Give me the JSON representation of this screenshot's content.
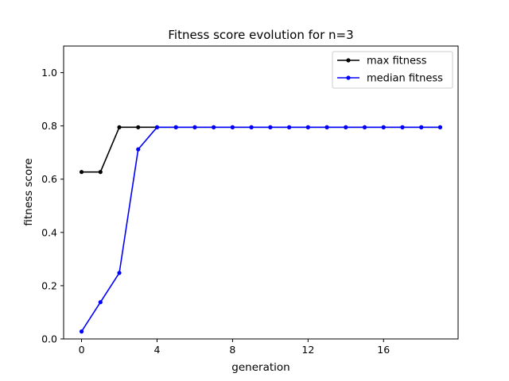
{
  "chart_data": {
    "type": "line",
    "title": "Fitness score evolution for n=3",
    "xlabel": "generation",
    "ylabel": "fitness score",
    "xlim": [
      -0.95,
      19.95
    ],
    "ylim": [
      0.0,
      1.1
    ],
    "xticks": [
      0,
      4,
      8,
      12,
      16
    ],
    "yticks": [
      0.0,
      0.2,
      0.4,
      0.6,
      0.8,
      1.0
    ],
    "xtick_labels": [
      "0",
      "4",
      "8",
      "12",
      "16"
    ],
    "ytick_labels": [
      "0.0",
      "0.2",
      "0.4",
      "0.6",
      "0.8",
      "1.0"
    ],
    "grid": false,
    "legend_position": "upper right",
    "x": [
      0,
      1,
      2,
      3,
      4,
      5,
      6,
      7,
      8,
      9,
      10,
      11,
      12,
      13,
      14,
      15,
      16,
      17,
      18,
      19
    ],
    "series": [
      {
        "name": "max fitness",
        "color": "#000000",
        "values": [
          0.627,
          0.627,
          0.795,
          0.795,
          0.795,
          0.795,
          0.795,
          0.795,
          0.795,
          0.795,
          0.795,
          0.795,
          0.795,
          0.795,
          0.795,
          0.795,
          0.795,
          0.795,
          0.795,
          0.795
        ]
      },
      {
        "name": "median fitness",
        "color": "#0000ff",
        "values": [
          0.028,
          0.138,
          0.248,
          0.712,
          0.795,
          0.795,
          0.795,
          0.795,
          0.795,
          0.795,
          0.795,
          0.795,
          0.795,
          0.795,
          0.795,
          0.795,
          0.795,
          0.795,
          0.795,
          0.795
        ]
      }
    ]
  }
}
